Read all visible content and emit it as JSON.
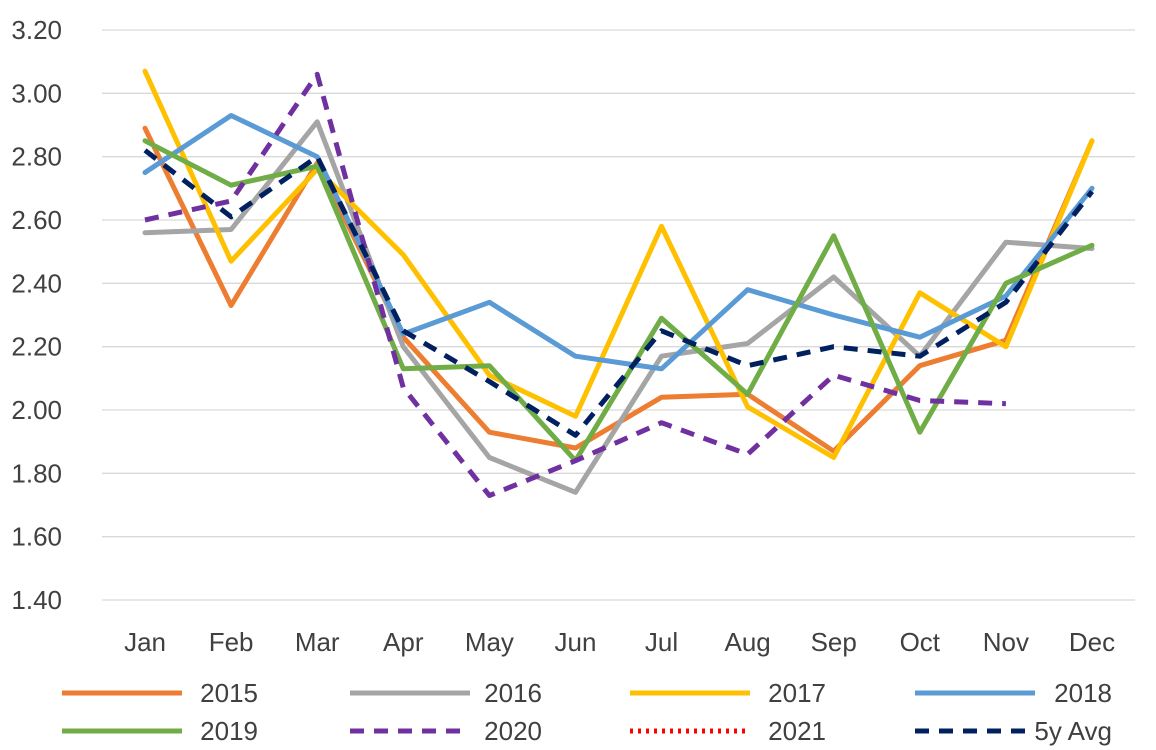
{
  "chart_data": {
    "type": "line",
    "title": "",
    "xlabel": "",
    "ylabel": "",
    "categories": [
      "Jan",
      "Feb",
      "Mar",
      "Apr",
      "May",
      "Jun",
      "Jul",
      "Aug",
      "Sep",
      "Oct",
      "Nov",
      "Dec"
    ],
    "ylim": [
      1.4,
      3.2
    ],
    "yticks": [
      "1.40",
      "1.60",
      "1.80",
      "2.00",
      "2.20",
      "2.40",
      "2.60",
      "2.80",
      "3.00",
      "3.20"
    ],
    "grid": true,
    "legend_position": "bottom",
    "series": [
      {
        "name": "2015",
        "color": "#ED7D31",
        "dash": "solid",
        "values": [
          2.89,
          2.33,
          2.78,
          2.23,
          1.93,
          1.88,
          2.04,
          2.05,
          1.87,
          2.14,
          2.22,
          2.85
        ]
      },
      {
        "name": "2016",
        "color": "#A5A5A5",
        "dash": "solid",
        "values": [
          2.56,
          2.57,
          2.91,
          2.2,
          1.85,
          1.74,
          2.17,
          2.21,
          2.42,
          2.17,
          2.53,
          2.51
        ]
      },
      {
        "name": "2017",
        "color": "#FFC000",
        "dash": "solid",
        "values": [
          3.07,
          2.47,
          2.76,
          2.49,
          2.11,
          1.98,
          2.58,
          2.01,
          1.85,
          2.37,
          2.2,
          2.85
        ]
      },
      {
        "name": "2018",
        "color": "#5B9BD5",
        "dash": "solid",
        "values": [
          2.75,
          2.93,
          2.8,
          2.24,
          2.34,
          2.17,
          2.13,
          2.38,
          2.3,
          2.23,
          2.36,
          2.7
        ]
      },
      {
        "name": "2019",
        "color": "#70AD47",
        "dash": "solid",
        "values": [
          2.85,
          2.71,
          2.77,
          2.13,
          2.14,
          1.84,
          2.29,
          2.05,
          2.55,
          1.93,
          2.4,
          2.52
        ]
      },
      {
        "name": "2020",
        "color": "#7030A0",
        "dash": "dash",
        "values": [
          2.6,
          2.66,
          3.06,
          2.07,
          1.73,
          1.84,
          1.96,
          1.86,
          2.11,
          2.03,
          2.02,
          null
        ]
      },
      {
        "name": "2021",
        "color": "#FF0000",
        "dash": "dot",
        "values": [
          null,
          null,
          null,
          null,
          null,
          null,
          null,
          null,
          null,
          null,
          null,
          null
        ]
      },
      {
        "name": "5y Avg",
        "color": "#002060",
        "dash": "dash",
        "values": [
          2.82,
          2.61,
          2.8,
          2.25,
          2.09,
          1.92,
          2.25,
          2.14,
          2.2,
          2.17,
          2.34,
          2.69
        ]
      }
    ]
  }
}
